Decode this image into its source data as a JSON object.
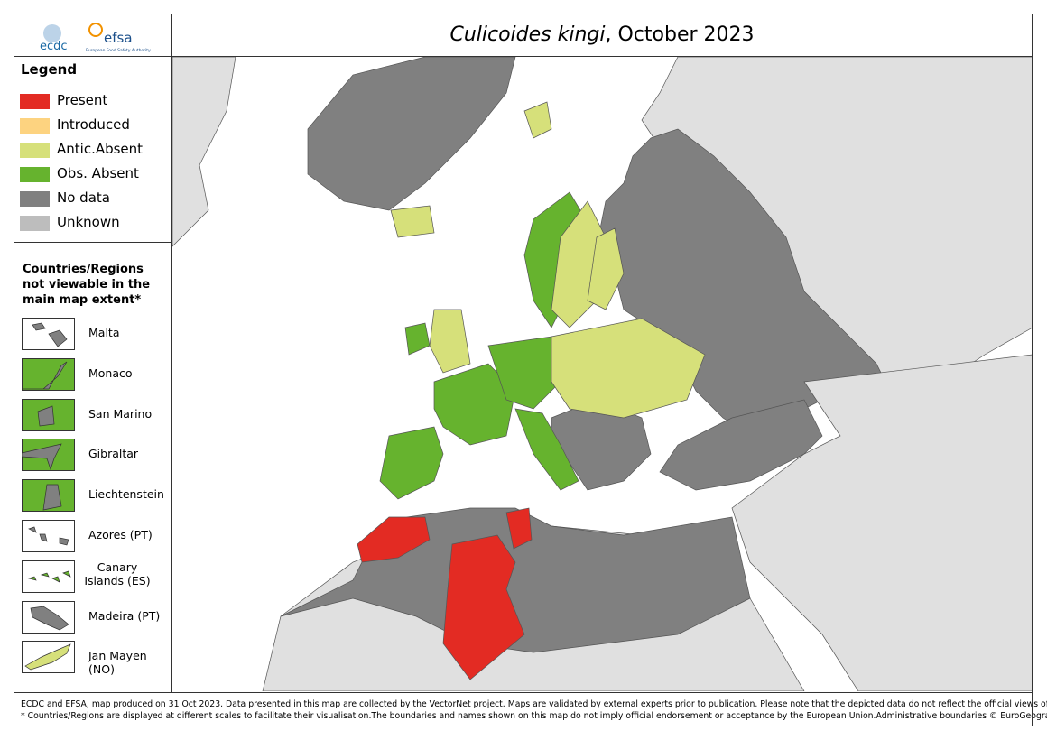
{
  "header": {
    "logo_ecdc": "ecdc",
    "logo_efsa": "efsa",
    "logo_efsa_sub": "European Food Safety Authority",
    "title_species": "Culicoides kingi",
    "title_date": ", October 2023"
  },
  "legend": {
    "title": "Legend",
    "items": [
      {
        "label": "Present",
        "color": "#e32b23"
      },
      {
        "label": "Introduced",
        "color": "#fdd380"
      },
      {
        "label": "Antic.Absent",
        "color": "#d6e07a"
      },
      {
        "label": "Obs. Absent",
        "color": "#66b32e"
      },
      {
        "label": "No data",
        "color": "#808080"
      },
      {
        "label": "Unknown",
        "color": "#bdbdbd"
      }
    ]
  },
  "insets": {
    "title": "Countries/Regions not viewable in the main map extent*",
    "items": [
      {
        "label": "Malta",
        "background": "#ffffff",
        "color": "#808080"
      },
      {
        "label": "Monaco",
        "background": "#66b32e",
        "color": "#808080"
      },
      {
        "label": "San Marino",
        "background": "#66b32e",
        "color": "#808080"
      },
      {
        "label": "Gibraltar",
        "background": "#66b32e",
        "color": "#808080"
      },
      {
        "label": "Liechtenstein",
        "background": "#66b32e",
        "color": "#808080"
      },
      {
        "label": "Azores (PT)",
        "background": "#ffffff",
        "color": "#808080"
      },
      {
        "label": "Canary Islands (ES)",
        "background": "#ffffff",
        "color": "#66b32e"
      },
      {
        "label": "Madeira (PT)",
        "background": "#ffffff",
        "color": "#808080"
      },
      {
        "label": "Jan Mayen (NO)",
        "background": "#ffffff",
        "color": "#d6e07a"
      }
    ]
  },
  "footer": {
    "line1": "ECDC and EFSA, map produced on 31 Oct 2023. Data presented in this map are collected by the VectorNet project. Maps are validated by external experts prior to publication. Please note that the depicted data do not reflect the official views of the countries.",
    "line2": "* Countries/Regions are displayed at different scales to facilitate their visualisation.The boundaries and names shown on this map do not imply official endorsement or acceptance by the European Union.Administrative boundaries © EuroGeographics, UNFAO."
  }
}
